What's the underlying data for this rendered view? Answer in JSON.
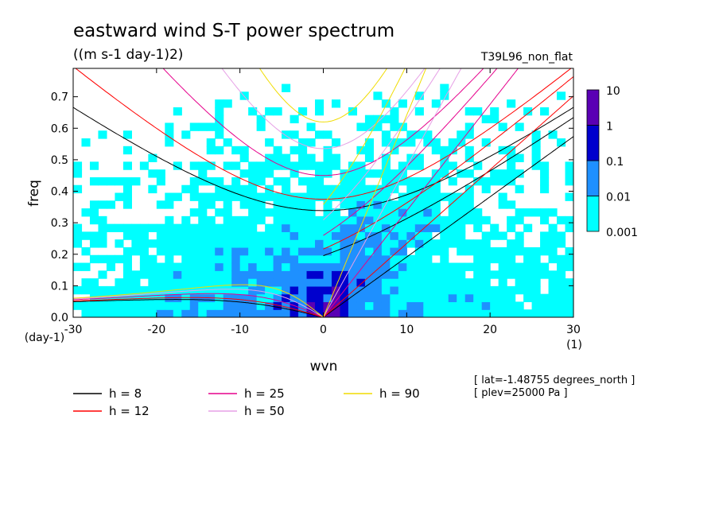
{
  "title": "eastward wind S-T power spectrum",
  "units": "((m s-1 day-1)2)",
  "experiment": "T39L96_non_flat",
  "info": [
    "[ lat=-1.48755 degrees_north ]",
    "[ plev=25000 Pa ]"
  ],
  "chart_data": {
    "type": "heatmap",
    "xlabel": "wvn",
    "ylabel": "freq",
    "xunit_label": "(1)",
    "yunit_label": "(day-1)",
    "xlim": [
      -30,
      30
    ],
    "ylim": [
      0,
      0.79
    ],
    "xticks": [
      -30,
      -20,
      -10,
      0,
      10,
      20,
      30
    ],
    "xtick_labels": [
      "-30",
      "-20",
      "-10",
      "0",
      "10",
      "20",
      "30"
    ],
    "yticks": [
      0.0,
      0.1,
      0.2,
      0.3,
      0.4,
      0.5,
      0.6,
      0.7
    ],
    "ytick_labels": [
      "0.0",
      "0.1",
      "0.2",
      "0.3",
      "0.4",
      "0.5",
      "0.6",
      "0.7"
    ],
    "colorbar": {
      "scale": "log",
      "levels": [
        0.001,
        0.01,
        0.1,
        1,
        10
      ],
      "labels": [
        "0.001",
        "0.01",
        "0.1",
        "1",
        "10"
      ],
      "colors": [
        "#00ffff",
        "#1e90ff",
        "#0000cd",
        "#5a00b4"
      ],
      "below_color": "#ffffff"
    },
    "dispersion_curves": [
      {
        "label": "h =  8",
        "h": 8,
        "color": "#000000"
      },
      {
        "label": "h = 12",
        "h": 12,
        "color": "#ff0000"
      },
      {
        "label": "h = 25",
        "h": 25,
        "color": "#e6008c"
      },
      {
        "label": "h = 50",
        "h": 50,
        "color": "#e6a0e6"
      },
      {
        "label": "h = 90",
        "h": 90,
        "color": "#f0dc00"
      }
    ]
  }
}
